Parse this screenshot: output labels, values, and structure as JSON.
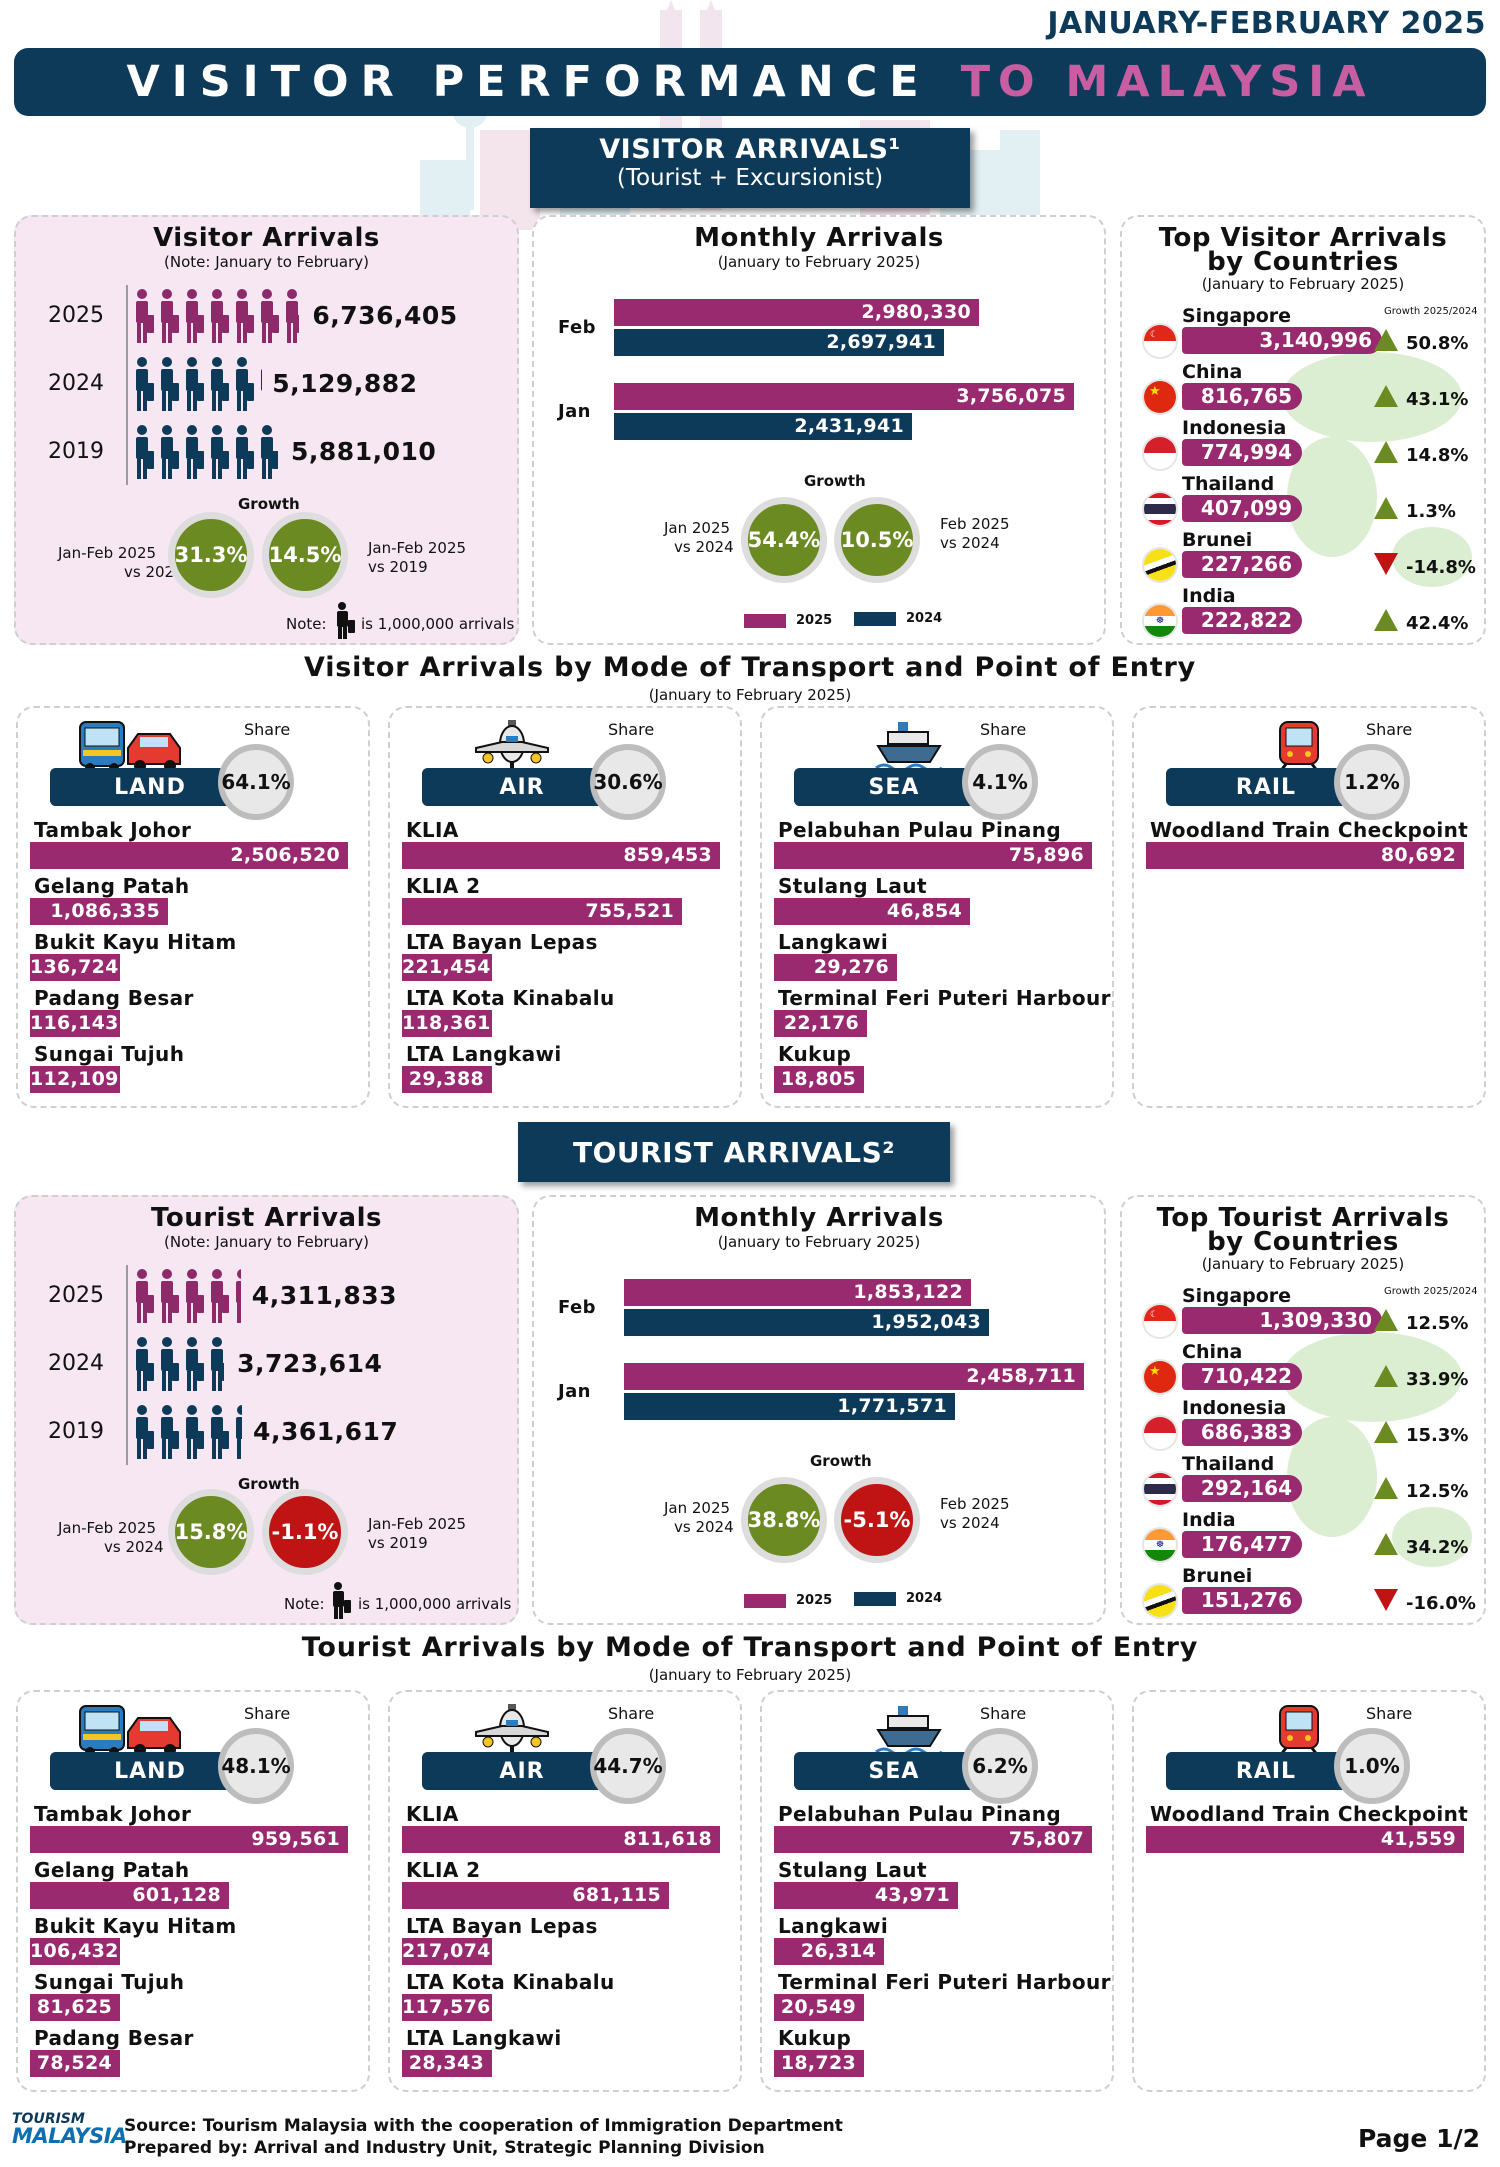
{
  "period": "JANUARY-FEBRUARY 2025",
  "title_main": "VISITOR PERFORMANCE",
  "title_accent": "TO MALAYSIA",
  "colors": {
    "navy": "#0e3a5a",
    "plum": "#9a2a6f",
    "green": "#6c8a22",
    "red": "#c01313"
  },
  "visitor_badge": {
    "title": "VISITOR ARRIVALS¹",
    "subtitle": "(Tourist + Excursionist)"
  },
  "tourist_badge": {
    "title": "TOURIST ARRIVALS²"
  },
  "visitor": {
    "arrivals": {
      "title": "Visitor Arrivals",
      "note": "(Note: January to February)",
      "rows": [
        {
          "year": "2025",
          "value": "6,736,405",
          "count": 6.736
        },
        {
          "year": "2024",
          "value": "5,129,882",
          "count": 5.13
        },
        {
          "year": "2019",
          "value": "5,881,010",
          "count": 5.881
        }
      ],
      "growth_label": "Growth",
      "g1": {
        "value": "31.3%",
        "label1": "Jan-Feb 2025",
        "label2": "vs 2024"
      },
      "g2": {
        "value": "14.5%",
        "label1": "Jan-Feb 2025",
        "label2": "vs 2019"
      },
      "footnote_a": "Note:",
      "footnote_b": "is 1,000,000 arrivals"
    },
    "monthly": {
      "title": "Monthly Arrivals",
      "subtitle": "(January to February 2025)",
      "months": [
        {
          "label": "Feb",
          "v2025": "2,980,330",
          "n2025": 2980330,
          "v2024": "2,697,941",
          "n2024": 2697941
        },
        {
          "label": "Jan",
          "v2025": "3,756,075",
          "n2025": 3756075,
          "v2024": "2,431,941",
          "n2024": 2431941
        }
      ],
      "growth_label": "Growth",
      "g1": {
        "value": "54.4%",
        "label1": "Jan 2025",
        "label2": "vs 2024"
      },
      "g2": {
        "value": "10.5%",
        "label1": "Feb 2025",
        "label2": "vs 2024"
      },
      "legend": [
        "2025",
        "2024"
      ]
    },
    "top": {
      "title1": "Top Visitor Arrivals",
      "title2": "by Countries",
      "subtitle": "(January to February 2025)",
      "growth_hdr": "Growth 2025/2024",
      "countries": [
        {
          "name": "Singapore",
          "value": "3,140,996",
          "n": 3140996,
          "growth": "50.8%",
          "dir": "up",
          "flag": "sg"
        },
        {
          "name": "China",
          "value": "816,765",
          "n": 816765,
          "growth": "43.1%",
          "dir": "up",
          "flag": "cn"
        },
        {
          "name": "Indonesia",
          "value": "774,994",
          "n": 774994,
          "growth": "14.8%",
          "dir": "up",
          "flag": "id"
        },
        {
          "name": "Thailand",
          "value": "407,099",
          "n": 407099,
          "growth": "1.3%",
          "dir": "up",
          "flag": "th"
        },
        {
          "name": "Brunei",
          "value": "227,266",
          "n": 227266,
          "growth": "-14.8%",
          "dir": "down",
          "flag": "bn"
        },
        {
          "name": "India",
          "value": "222,822",
          "n": 222822,
          "growth": "42.4%",
          "dir": "up",
          "flag": "in"
        }
      ]
    },
    "mode": {
      "title": "Visitor Arrivals by Mode of Transport and Point of Entry",
      "subtitle": "(January to February 2025)",
      "share_label": "Share",
      "land": {
        "label": "LAND",
        "share": "64.1%",
        "rows": [
          {
            "name": "Tambak Johor",
            "value": "2,506,520",
            "n": 2506520
          },
          {
            "name": "Gelang Patah",
            "value": "1,086,335",
            "n": 1086335
          },
          {
            "name": "Bukit Kayu Hitam",
            "value": "136,724",
            "n": 136724
          },
          {
            "name": "Padang Besar",
            "value": "116,143",
            "n": 116143
          },
          {
            "name": "Sungai Tujuh",
            "value": "112,109",
            "n": 112109
          }
        ]
      },
      "air": {
        "label": "AIR",
        "share": "30.6%",
        "rows": [
          {
            "name": "KLIA",
            "value": "859,453",
            "n": 859453
          },
          {
            "name": "KLIA 2",
            "value": "755,521",
            "n": 755521
          },
          {
            "name": "LTA Bayan Lepas",
            "value": "221,454",
            "n": 221454
          },
          {
            "name": "LTA Kota Kinabalu",
            "value": "118,361",
            "n": 118361
          },
          {
            "name": "LTA Langkawi",
            "value": "29,388",
            "n": 29388
          }
        ]
      },
      "sea": {
        "label": "SEA",
        "share": "4.1%",
        "rows": [
          {
            "name": "Pelabuhan Pulau Pinang",
            "value": "75,896",
            "n": 75896
          },
          {
            "name": "Stulang Laut",
            "value": "46,854",
            "n": 46854
          },
          {
            "name": "Langkawi",
            "value": "29,276",
            "n": 29276
          },
          {
            "name": "Terminal Feri Puteri Harbour",
            "value": "22,176",
            "n": 22176
          },
          {
            "name": "Kukup",
            "value": "18,805",
            "n": 18805
          }
        ]
      },
      "rail": {
        "label": "RAIL",
        "share": "1.2%",
        "rows": [
          {
            "name": "Woodland Train Checkpoint",
            "value": "80,692",
            "n": 80692
          }
        ]
      }
    }
  },
  "tourist": {
    "arrivals": {
      "title": "Tourist Arrivals",
      "note": "(Note: January to February)",
      "rows": [
        {
          "year": "2025",
          "value": "4,311,833",
          "count": 4.312
        },
        {
          "year": "2024",
          "value": "3,723,614",
          "count": 3.724
        },
        {
          "year": "2019",
          "value": "4,361,617",
          "count": 4.362
        }
      ],
      "growth_label": "Growth",
      "g1": {
        "value": "15.8%",
        "label1": "Jan-Feb 2025",
        "label2": "vs 2024"
      },
      "g2": {
        "value": "-1.1%",
        "label1": "Jan-Feb 2025",
        "label2": "vs 2019"
      },
      "footnote_a": "Note:",
      "footnote_b": "is 1,000,000 arrivals"
    },
    "monthly": {
      "title": "Monthly Arrivals",
      "subtitle": "(January to February 2025)",
      "months": [
        {
          "label": "Feb",
          "v2025": "1,853,122",
          "n2025": 1853122,
          "v2024": "1,952,043",
          "n2024": 1952043
        },
        {
          "label": "Jan",
          "v2025": "2,458,711",
          "n2025": 2458711,
          "v2024": "1,771,571",
          "n2024": 1771571
        }
      ],
      "growth_label": "Growth",
      "g1": {
        "value": "38.8%",
        "label1": "Jan 2025",
        "label2": "vs 2024"
      },
      "g2": {
        "value": "-5.1%",
        "label1": "Feb 2025",
        "label2": "vs 2024"
      },
      "legend": [
        "2025",
        "2024"
      ]
    },
    "top": {
      "title1": "Top Tourist Arrivals",
      "title2": "by Countries",
      "subtitle": "(January to February 2025)",
      "growth_hdr": "Growth 2025/2024",
      "countries": [
        {
          "name": "Singapore",
          "value": "1,309,330",
          "n": 1309330,
          "growth": "12.5%",
          "dir": "up",
          "flag": "sg"
        },
        {
          "name": "China",
          "value": "710,422",
          "n": 710422,
          "growth": "33.9%",
          "dir": "up",
          "flag": "cn"
        },
        {
          "name": "Indonesia",
          "value": "686,383",
          "n": 686383,
          "growth": "15.3%",
          "dir": "up",
          "flag": "id"
        },
        {
          "name": "Thailand",
          "value": "292,164",
          "n": 292164,
          "growth": "12.5%",
          "dir": "up",
          "flag": "th"
        },
        {
          "name": "India",
          "value": "176,477",
          "n": 176477,
          "growth": "34.2%",
          "dir": "up",
          "flag": "in"
        },
        {
          "name": "Brunei",
          "value": "151,276",
          "n": 151276,
          "growth": "-16.0%",
          "dir": "down",
          "flag": "bn"
        }
      ]
    },
    "mode": {
      "title": "Tourist Arrivals by Mode of Transport and Point of Entry",
      "subtitle": "(January to February 2025)",
      "share_label": "Share",
      "land": {
        "label": "LAND",
        "share": "48.1%",
        "rows": [
          {
            "name": "Tambak Johor",
            "value": "959,561",
            "n": 959561
          },
          {
            "name": "Gelang Patah",
            "value": "601,128",
            "n": 601128
          },
          {
            "name": "Bukit Kayu Hitam",
            "value": "106,432",
            "n": 106432
          },
          {
            "name": "Sungai Tujuh",
            "value": "81,625",
            "n": 81625
          },
          {
            "name": "Padang Besar",
            "value": "78,524",
            "n": 78524
          }
        ]
      },
      "air": {
        "label": "AIR",
        "share": "44.7%",
        "rows": [
          {
            "name": "KLIA",
            "value": "811,618",
            "n": 811618
          },
          {
            "name": "KLIA 2",
            "value": "681,115",
            "n": 681115
          },
          {
            "name": "LTA Bayan Lepas",
            "value": "217,074",
            "n": 217074
          },
          {
            "name": "LTA Kota Kinabalu",
            "value": "117,576",
            "n": 117576
          },
          {
            "name": "LTA Langkawi",
            "value": "28,343",
            "n": 28343
          }
        ]
      },
      "sea": {
        "label": "SEA",
        "share": "6.2%",
        "rows": [
          {
            "name": "Pelabuhan Pulau Pinang",
            "value": "75,807",
            "n": 75807
          },
          {
            "name": "Stulang Laut",
            "value": "43,971",
            "n": 43971
          },
          {
            "name": "Langkawi",
            "value": "26,314",
            "n": 26314
          },
          {
            "name": "Terminal Feri Puteri Harbour",
            "value": "20,549",
            "n": 20549
          },
          {
            "name": "Kukup",
            "value": "18,723",
            "n": 18723
          }
        ]
      },
      "rail": {
        "label": "RAIL",
        "share": "1.0%",
        "rows": [
          {
            "name": "Woodland Train Checkpoint",
            "value": "41,559",
            "n": 41559
          }
        ]
      }
    }
  },
  "footer": {
    "logo_top": "TOURISM",
    "logo_bottom": "MALAYSIA",
    "source": "Source: Tourism Malaysia with the cooperation of Immigration Department",
    "prepared": "Prepared by: Arrival and Industry Unit, Strategic Planning Division",
    "page": "Page 1/2"
  }
}
